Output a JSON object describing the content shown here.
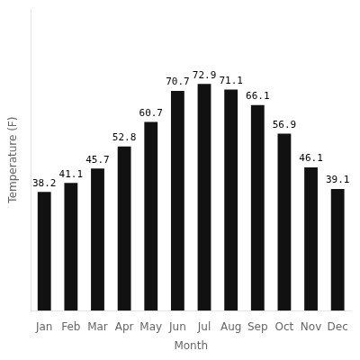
{
  "chart_data": {
    "type": "bar",
    "categories": [
      "Jan",
      "Feb",
      "Mar",
      "Apr",
      "May",
      "Jun",
      "Jul",
      "Aug",
      "Sep",
      "Oct",
      "Nov",
      "Dec"
    ],
    "values": [
      38.2,
      41.1,
      45.7,
      52.8,
      60.7,
      70.7,
      72.9,
      71.1,
      66.1,
      56.9,
      46.1,
      39.1
    ],
    "color": "#111111",
    "x_label": "Month",
    "y_label": "Temperature (F)",
    "ylim": [
      0,
      97
    ],
    "grid": false,
    "data_labels": true,
    "tick_labels": "x"
  }
}
